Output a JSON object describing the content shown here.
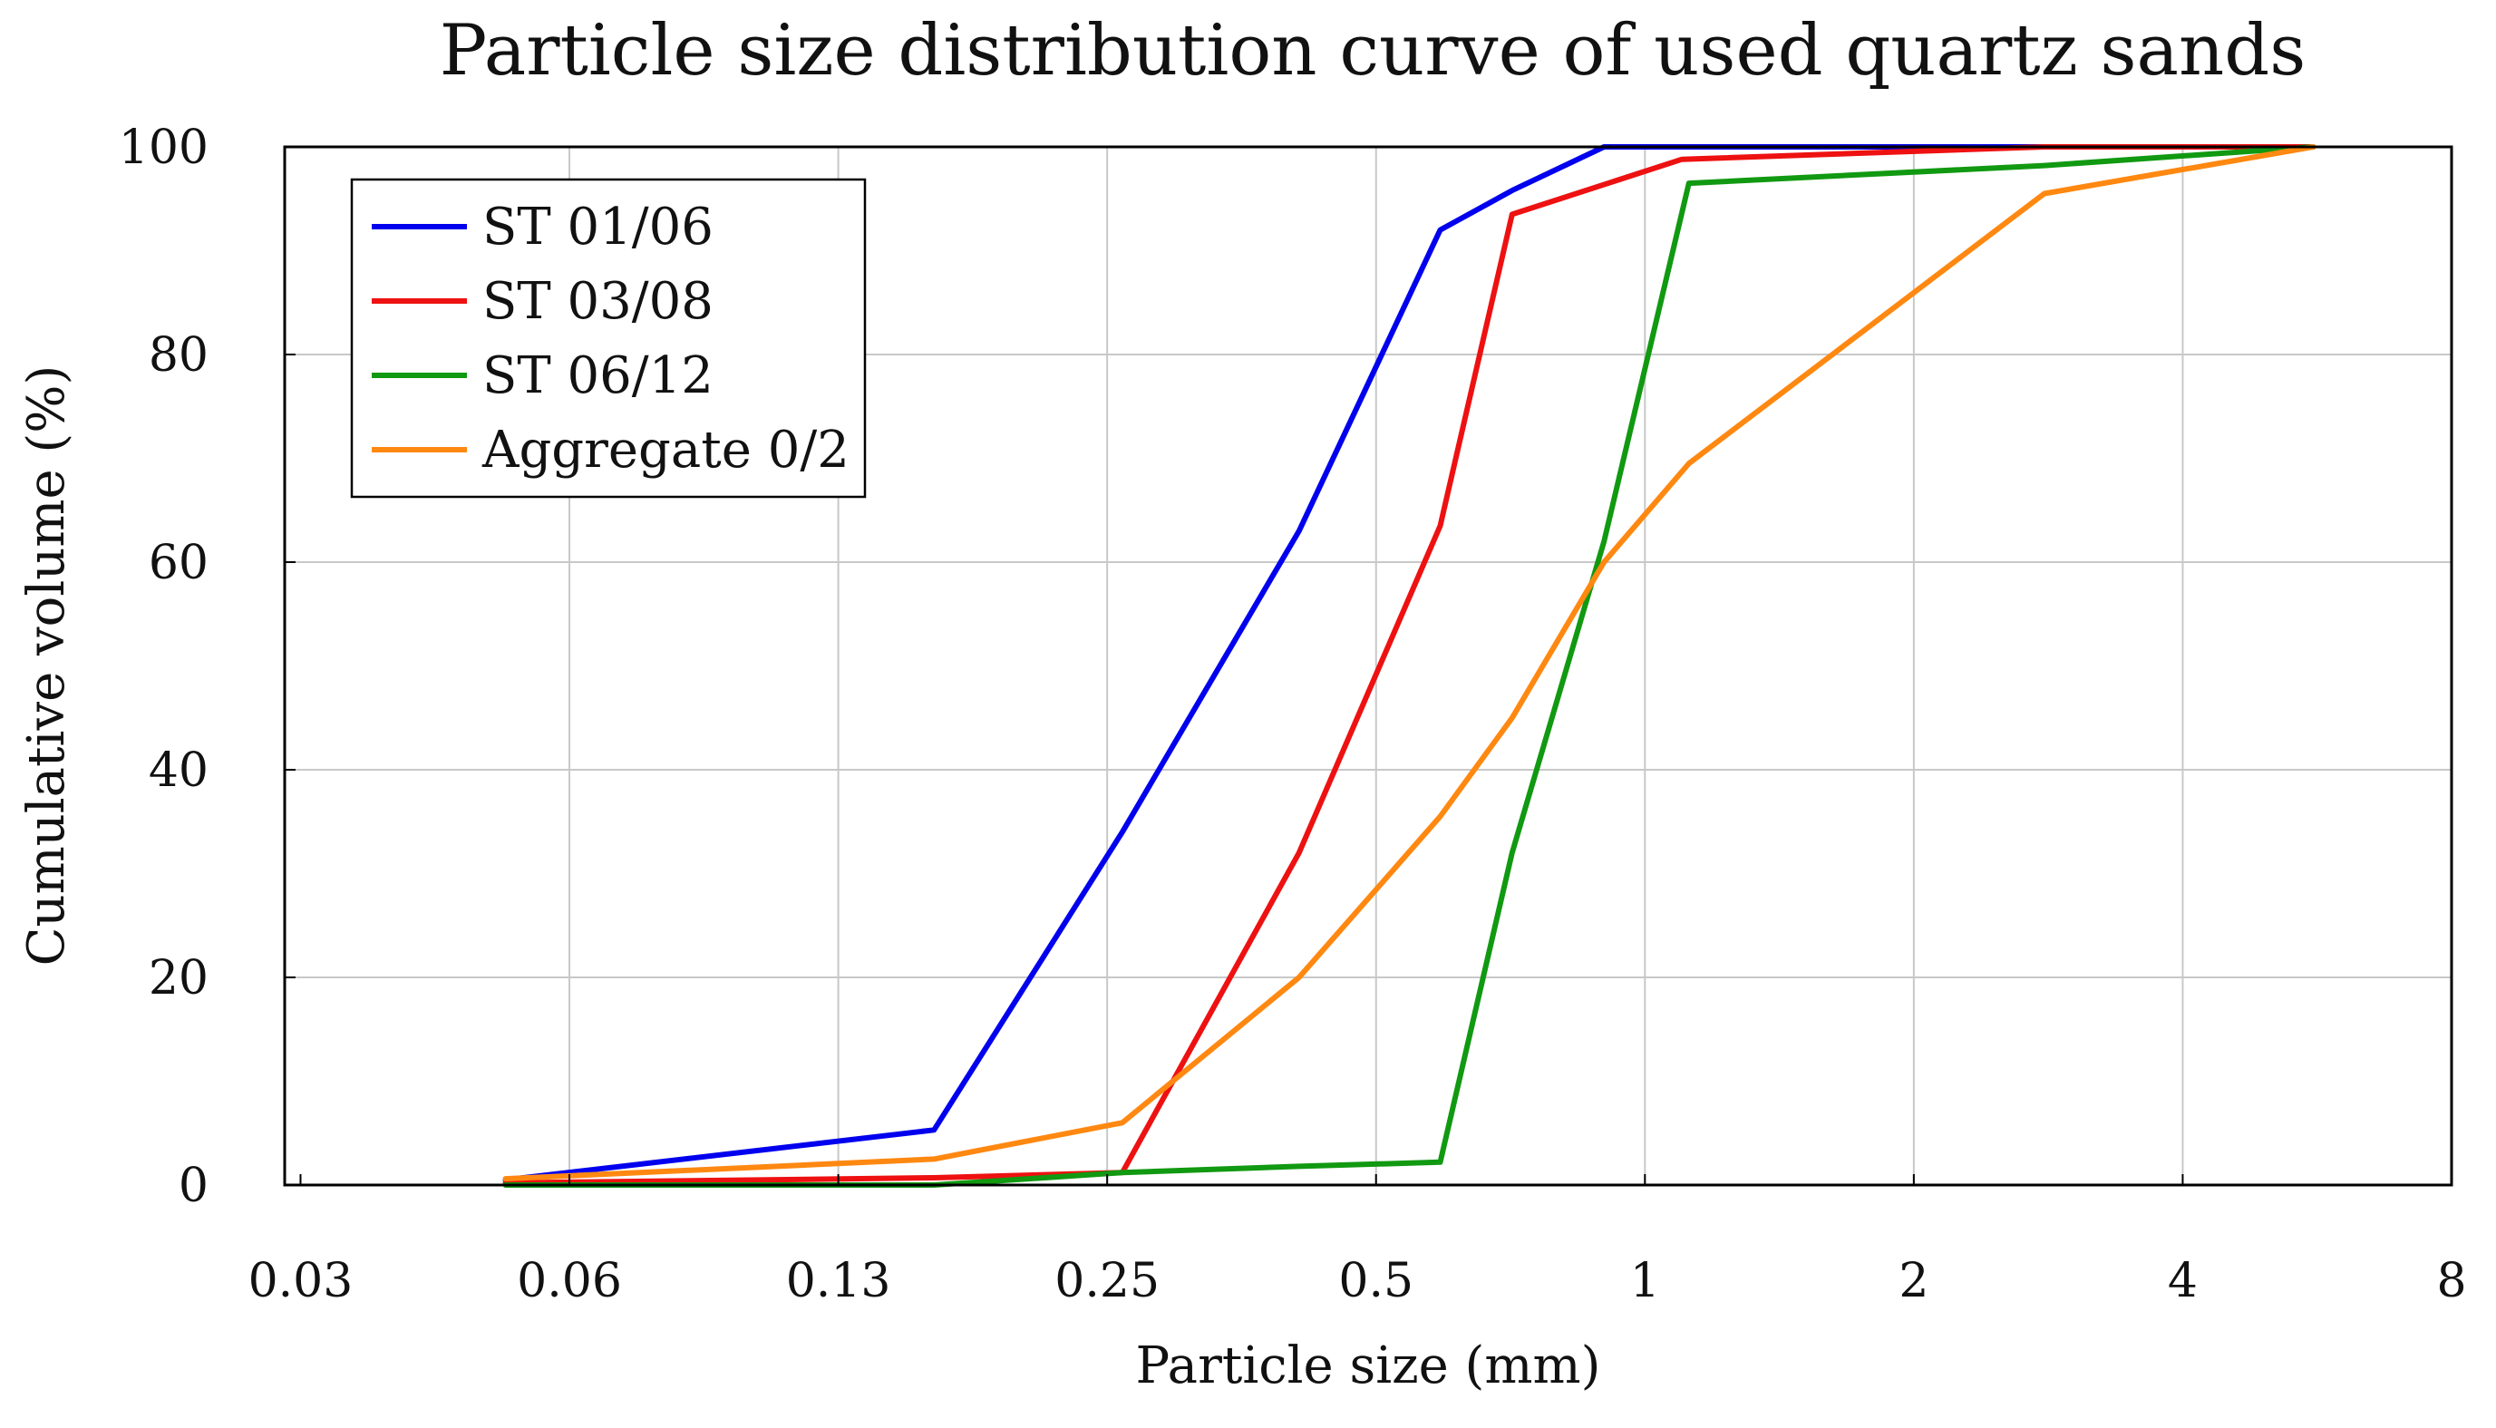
{
  "chart_data": {
    "type": "line",
    "title": "Particle size distribution curve of used quartz sands",
    "xlabel": "Particle size (mm)",
    "ylabel": "Cumulative volume (%)",
    "x_scale": "log2",
    "xlim": [
      0.03,
      8
    ],
    "ylim": [
      0,
      100
    ],
    "x_ticks": [
      {
        "value": 0.03125,
        "label": "0.03"
      },
      {
        "value": 0.0625,
        "label": "0.06"
      },
      {
        "value": 0.125,
        "label": "0.13"
      },
      {
        "value": 0.25,
        "label": "0.25"
      },
      {
        "value": 0.5,
        "label": "0.5"
      },
      {
        "value": 1,
        "label": "1"
      },
      {
        "value": 2,
        "label": "2"
      },
      {
        "value": 4,
        "label": "4"
      },
      {
        "value": 8,
        "label": "8"
      }
    ],
    "y_ticks": [
      {
        "value": 0,
        "label": "0"
      },
      {
        "value": 20,
        "label": "20"
      },
      {
        "value": 40,
        "label": "40"
      },
      {
        "value": 60,
        "label": "60"
      },
      {
        "value": 80,
        "label": "80"
      },
      {
        "value": 100,
        "label": "100"
      }
    ],
    "grid": true,
    "legend_position": "top-left",
    "series": [
      {
        "name": "ST 01/06",
        "color": "#0000ee",
        "points": [
          [
            0.053,
            0.5
          ],
          [
            0.16,
            5.3
          ],
          [
            0.26,
            34
          ],
          [
            0.41,
            63
          ],
          [
            0.59,
            92
          ],
          [
            0.71,
            95.8
          ],
          [
            0.9,
            100
          ],
          [
            1.4,
            100
          ],
          [
            5.6,
            100
          ]
        ]
      },
      {
        "name": "ST 03/08",
        "color": "#ee1111",
        "points": [
          [
            0.053,
            0.2
          ],
          [
            0.16,
            0.7
          ],
          [
            0.26,
            1.2
          ],
          [
            0.41,
            32
          ],
          [
            0.59,
            63.5
          ],
          [
            0.71,
            93.5
          ],
          [
            1.1,
            98.8
          ],
          [
            2.8,
            100
          ],
          [
            5.6,
            100
          ]
        ]
      },
      {
        "name": "ST 06/12",
        "color": "#119911",
        "points": [
          [
            0.053,
            0
          ],
          [
            0.16,
            0
          ],
          [
            0.26,
            1.2
          ],
          [
            0.41,
            1.8
          ],
          [
            0.59,
            2.2
          ],
          [
            0.71,
            32
          ],
          [
            0.9,
            62
          ],
          [
            1.12,
            96.5
          ],
          [
            2.8,
            98.2
          ],
          [
            5.6,
            100
          ]
        ]
      },
      {
        "name": "Aggregate 0/2",
        "color": "#ff8811",
        "points": [
          [
            0.053,
            0.6
          ],
          [
            0.16,
            2.5
          ],
          [
            0.26,
            6
          ],
          [
            0.41,
            20
          ],
          [
            0.59,
            35.5
          ],
          [
            0.71,
            45
          ],
          [
            0.9,
            60
          ],
          [
            1.12,
            69.5
          ],
          [
            2.8,
            95.5
          ],
          [
            5.6,
            100
          ]
        ]
      }
    ]
  }
}
